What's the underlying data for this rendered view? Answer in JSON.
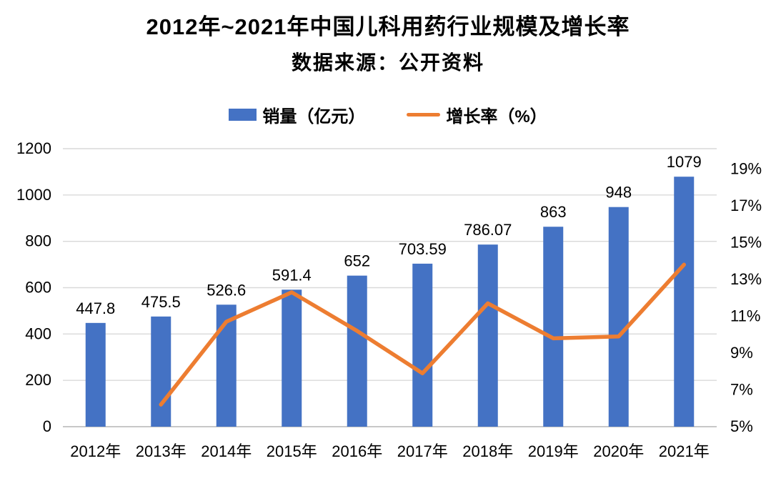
{
  "title": "2012年~2021年中国儿科用药行业规模及增长率",
  "subtitle": "数据来源：公开资料",
  "legend": {
    "sales_label": "销量（亿元）",
    "growth_label": "增长率（%）"
  },
  "colors": {
    "bar": "#4472C4",
    "line": "#ED7D31",
    "gridline": "#D9D9D9",
    "axis_line": "#C8C8C8",
    "text": "#000000",
    "background": "#FFFFFF"
  },
  "chart_data": {
    "type": "bar+line",
    "title": "2012年~2021年中国儿科用药行业规模及增长率",
    "subtitle": "数据来源：公开资料",
    "categories": [
      "2012年",
      "2013年",
      "2014年",
      "2015年",
      "2016年",
      "2017年",
      "2018年",
      "2019年",
      "2020年",
      "2021年"
    ],
    "series": [
      {
        "name": "销量（亿元）",
        "type": "bar",
        "axis": "left",
        "color": "#4472C4",
        "values": [
          447.8,
          475.5,
          526.6,
          591.4,
          652,
          703.59,
          786.07,
          863,
          948,
          1079
        ],
        "data_labels": [
          "447.8",
          "475.5",
          "526.6",
          "591.4",
          "652",
          "703.59",
          "786.07",
          "863",
          "948",
          "1079"
        ]
      },
      {
        "name": "增长率（%）",
        "type": "line",
        "axis": "right",
        "color": "#ED7D31",
        "values": [
          null,
          6.2,
          10.7,
          12.3,
          10.2,
          7.9,
          11.7,
          9.8,
          9.9,
          13.8
        ]
      }
    ],
    "left_axis": {
      "min": 0,
      "max": 1200,
      "tick_values": [
        0,
        200,
        400,
        600,
        800,
        1000,
        1200
      ],
      "tick_labels": [
        "0",
        "200",
        "400",
        "600",
        "800",
        "1000",
        "1200"
      ]
    },
    "right_axis": {
      "min": 5,
      "max": 20.1,
      "tick_values": [
        5,
        7,
        9,
        11,
        13,
        15,
        17,
        19
      ],
      "tick_labels": [
        "5%",
        "7%",
        "9%",
        "11%",
        "13%",
        "15%",
        "17%",
        "19%"
      ]
    },
    "grid": true,
    "legend_position": "top"
  }
}
